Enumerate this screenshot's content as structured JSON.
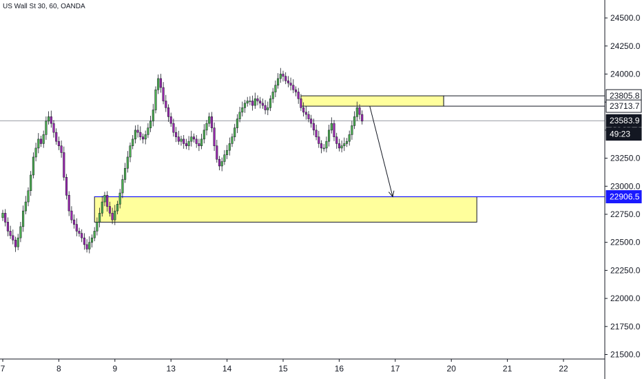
{
  "title": "US Wall St 30, 60, OANDA",
  "chart_data": {
    "type": "candlestick",
    "title": "US Wall St 30, 60, OANDA",
    "y_ticks": [
      21500,
      21750,
      22000,
      22250,
      22500,
      22750,
      23000,
      23250,
      23500,
      23750,
      24000,
      24250,
      24500
    ],
    "y_tick_labels": [
      "21500.0",
      "21750.0",
      "22000.0",
      "22250.0",
      "22500.0",
      "22750.0",
      "23000.0",
      "23250.0",
      "23500.0",
      "23750.0",
      "24000.0",
      "24250.0",
      "24500.0"
    ],
    "ylim": [
      21460,
      24660
    ],
    "x_tick_labels": [
      "7",
      "8",
      "9",
      "13",
      "14",
      "15",
      "16",
      "17",
      "20",
      "21",
      "22"
    ],
    "x_tick_index": [
      0,
      22,
      44,
      66,
      88,
      110,
      132,
      154,
      176,
      198,
      220
    ],
    "bar_count": 142,
    "price_tags": [
      {
        "label": "23805.8",
        "value": 23805.8,
        "style": "white"
      },
      {
        "label": "23713.7",
        "value": 23713.7,
        "style": "white"
      },
      {
        "label": "23583.9",
        "value": 23583.9,
        "style": "black"
      },
      {
        "label": "49:23",
        "value": 23465,
        "style": "black"
      },
      {
        "label": "22906.5",
        "value": 22906.5,
        "style": "blue"
      }
    ],
    "zones": [
      {
        "name": "upper-zone",
        "x_from_index": 117,
        "x_to_index": 173,
        "y_top": 23805.8,
        "y_bottom": 23713.7
      },
      {
        "name": "lower-zone",
        "x_from_index": 36,
        "x_to_index": 186,
        "y_top": 22906.5,
        "y_bottom": 22680
      }
    ],
    "arrow": {
      "from_index": 144,
      "from_value": 23713.7,
      "to_index": 153,
      "to_value": 22906.5
    },
    "current_price_line": 23583.9,
    "colors": {
      "up": "#4caf50",
      "down": "#9c27b0",
      "zone_fill": "#ffff9c",
      "blue_line": "#1a1aff",
      "axis": "#131722"
    },
    "closes": [
      22760,
      22680,
      22600,
      22560,
      22520,
      22460,
      22540,
      22640,
      22780,
      22860,
      22960,
      23100,
      23260,
      23340,
      23420,
      23380,
      23460,
      23580,
      23620,
      23560,
      23480,
      23400,
      23360,
      23300,
      23080,
      22920,
      22780,
      22700,
      22660,
      22600,
      22580,
      22540,
      22480,
      22440,
      22500,
      22540,
      22600,
      22680,
      22760,
      22860,
      22920,
      22820,
      22760,
      22700,
      22780,
      22840,
      22940,
      23060,
      23160,
      23260,
      23360,
      23420,
      23500,
      23480,
      23440,
      23420,
      23460,
      23520,
      23580,
      23680,
      23860,
      23960,
      23880,
      23760,
      23700,
      23620,
      23560,
      23480,
      23440,
      23400,
      23420,
      23380,
      23360,
      23400,
      23440,
      23420,
      23380,
      23360,
      23420,
      23500,
      23560,
      23620,
      23520,
      23360,
      23240,
      23180,
      23220,
      23280,
      23320,
      23380,
      23440,
      23520,
      23600,
      23660,
      23700,
      23740,
      23760,
      23760,
      23720,
      23780,
      23760,
      23740,
      23720,
      23680,
      23700,
      23780,
      23840,
      23900,
      23960,
      24000,
      23980,
      23940,
      23920,
      23900,
      23860,
      23840,
      23780,
      23700,
      23660,
      23640,
      23600,
      23560,
      23500,
      23440,
      23380,
      23340,
      23340,
      23400,
      23500,
      23560,
      23440,
      23380,
      23340,
      23360,
      23380,
      23400,
      23460,
      23540,
      23620,
      23700,
      23640,
      23580
    ]
  }
}
